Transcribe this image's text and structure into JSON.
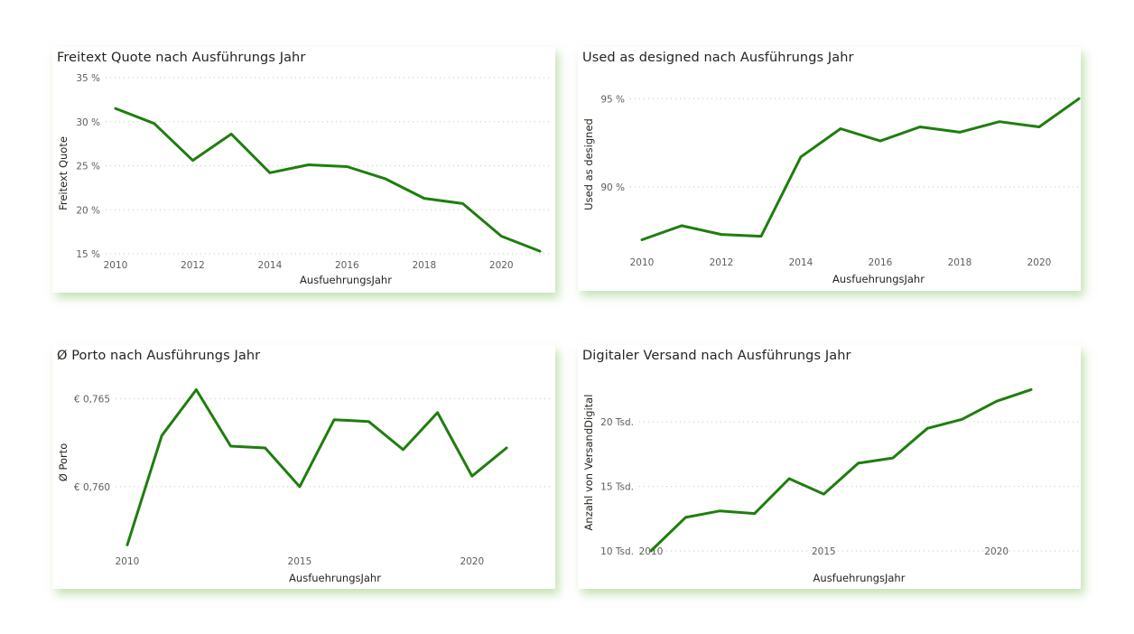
{
  "theme": {
    "line_color": "#1e7e0e",
    "shadow_color": "#b9dba3"
  },
  "charts": [
    {
      "title": "Freitext Quote nach Ausführungs Jahr",
      "xlabel": "AusfuehrungsJahr",
      "ylabel": "Freitext Quote",
      "ytick_labels": [
        "15 %",
        "20 %",
        "25 %",
        "30 %",
        "35 %"
      ],
      "xtick_labels": [
        "2010",
        "2012",
        "2014",
        "2016",
        "2018",
        "2020"
      ]
    },
    {
      "title": "Used as designed nach Ausführungs Jahr",
      "xlabel": "AusfuehrungsJahr",
      "ylabel": "Used as designed",
      "ytick_labels": [
        "90 %",
        "95 %"
      ],
      "xtick_labels": [
        "2010",
        "2012",
        "2014",
        "2016",
        "2018",
        "2020"
      ]
    },
    {
      "title": "Ø Porto nach Ausführungs Jahr",
      "xlabel": "AusfuehrungsJahr",
      "ylabel": "Ø Porto",
      "ytick_labels": [
        "€ 0,760",
        "€ 0,765"
      ],
      "xtick_labels": [
        "2010",
        "2015",
        "2020"
      ]
    },
    {
      "title": "Digitaler Versand nach Ausführungs Jahr",
      "xlabel": "AusfuehrungsJahr",
      "ylabel": "Anzahl von VersandDigital",
      "ytick_labels": [
        "10 Tsd.",
        "15 Tsd.",
        "20 Tsd."
      ],
      "xtick_labels": [
        "2010",
        "2015",
        "2020"
      ]
    }
  ],
  "chart_data": [
    {
      "type": "line",
      "title": "Freitext Quote nach Ausführungs Jahr",
      "xlabel": "AusfuehrungsJahr",
      "ylabel": "Freitext Quote",
      "x": [
        2010,
        2011,
        2012,
        2013,
        2014,
        2015,
        2016,
        2017,
        2018,
        2019,
        2020,
        2021
      ],
      "series": [
        {
          "name": "Freitext Quote",
          "values": [
            31.5,
            29.8,
            25.6,
            28.6,
            24.2,
            25.1,
            24.9,
            23.5,
            21.3,
            20.7,
            17.0,
            15.3
          ]
        }
      ],
      "yunit": "%",
      "yticks": [
        15,
        20,
        25,
        30,
        35
      ],
      "xticks": [
        2010,
        2012,
        2014,
        2016,
        2018,
        2020
      ],
      "ylim": [
        15,
        35
      ],
      "xlim": [
        2010,
        2021
      ],
      "grid": true,
      "legend": "none"
    },
    {
      "type": "line",
      "title": "Used as designed nach Ausführungs Jahr",
      "xlabel": "AusfuehrungsJahr",
      "ylabel": "Used as designed",
      "x": [
        2010,
        2011,
        2012,
        2013,
        2014,
        2015,
        2016,
        2017,
        2018,
        2019,
        2020,
        2021
      ],
      "series": [
        {
          "name": "Used as designed",
          "values": [
            87.0,
            87.8,
            87.3,
            87.2,
            91.7,
            93.3,
            92.6,
            93.4,
            93.1,
            93.7,
            93.4,
            95.0
          ]
        }
      ],
      "yunit": "%",
      "yticks": [
        90,
        95
      ],
      "xticks": [
        2010,
        2012,
        2014,
        2016,
        2018,
        2020
      ],
      "ylim": [
        86.0,
        96.5
      ],
      "xlim": [
        2010,
        2021
      ],
      "grid": true,
      "legend": "none"
    },
    {
      "type": "line",
      "title": "Ø Porto nach Ausführungs Jahr",
      "xlabel": "AusfuehrungsJahr",
      "ylabel": "Ø Porto",
      "x": [
        2010,
        2011,
        2012,
        2013,
        2014,
        2015,
        2016,
        2017,
        2018,
        2019,
        2020,
        2021
      ],
      "series": [
        {
          "name": "Ø Porto",
          "values": [
            0.7567,
            0.7629,
            0.7655,
            0.7623,
            0.7622,
            0.76,
            0.7638,
            0.7637,
            0.7621,
            0.7642,
            0.7606,
            0.7622
          ]
        }
      ],
      "yunit": "€",
      "yticks": [
        0.76,
        0.765
      ],
      "xticks": [
        2010,
        2015,
        2020
      ],
      "ylim": [
        0.756,
        0.7665
      ],
      "xlim": [
        2010,
        2021
      ],
      "grid": true,
      "legend": "none"
    },
    {
      "type": "line",
      "title": "Digitaler Versand nach Ausführungs Jahr",
      "xlabel": "AusfuehrungsJahr",
      "ylabel": "Anzahl von VersandDigital",
      "x": [
        2010,
        2011,
        2012,
        2013,
        2014,
        2015,
        2016,
        2017,
        2018,
        2019,
        2020,
        2021
      ],
      "series": [
        {
          "name": "Anzahl von VersandDigital",
          "values": [
            10000,
            12600,
            13100,
            12900,
            15600,
            14400,
            16800,
            17200,
            19500,
            20200,
            21600,
            22500
          ]
        }
      ],
      "yunit": "Tsd.",
      "yticks": [
        10000,
        15000,
        20000
      ],
      "xticks": [
        2010,
        2015,
        2020
      ],
      "ylim": [
        10000,
        24000
      ],
      "xlim": [
        2010,
        2021
      ],
      "grid": true,
      "legend": "none"
    }
  ]
}
